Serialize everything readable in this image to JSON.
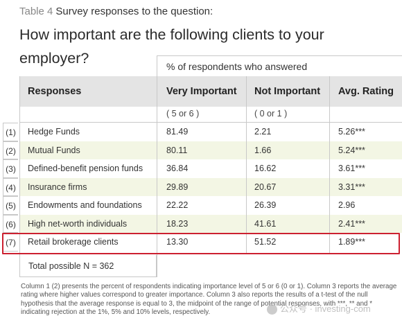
{
  "title": {
    "table_label": "Table 4",
    "line1": "Survey responses to the question:",
    "line2": "How important are the following clients to your",
    "line3": "employer?"
  },
  "table": {
    "group_header": "% of respondents who answered",
    "headers": [
      "Responses",
      "Very Important",
      "Not Important",
      "Avg. Rating"
    ],
    "subheaders": [
      "",
      "( 5 or 6 )",
      "( 0 or 1 )",
      ""
    ],
    "rows": [
      {
        "num": "(1)",
        "response": "Hedge Funds",
        "very": "81.49",
        "not": "2.21",
        "avg": "5.26***"
      },
      {
        "num": "(2)",
        "response": "Mutual Funds",
        "very": "80.11",
        "not": "1.66",
        "avg": "5.24***"
      },
      {
        "num": "(3)",
        "response": "Defined-benefit pension funds",
        "very": "36.84",
        "not": "16.62",
        "avg": "3.61***"
      },
      {
        "num": "(4)",
        "response": "Insurance firms",
        "very": "29.89",
        "not": "20.67",
        "avg": "3.31***"
      },
      {
        "num": "(5)",
        "response": "Endowments and foundations",
        "very": "22.22",
        "not": "26.39",
        "avg": "2.96"
      },
      {
        "num": "(6)",
        "response": "High net-worth individuals",
        "very": "18.23",
        "not": "41.61",
        "avg": "2.41***"
      },
      {
        "num": "(7)",
        "response": "Retail brokerage clients",
        "very": "13.30",
        "not": "51.52",
        "avg": "1.89***"
      }
    ],
    "total": "Total possible N = 362",
    "highlight_color": "#cc2030"
  },
  "footnote": "Column 1 (2) presents the percent of respondents indicating importance level of 5 or 6 (0 or 1). Column 3 reports the average rating where higher values correspond to greater importance. Column 3 also reports the results of a t-test of the null hypothesis that the average response is equal to 3, the midpoint of the range of potential responses, with ***, ** and * indicating rejection at the 1%, 5% and 10% levels, respectively.",
  "watermark": "公众号 · investing-com"
}
